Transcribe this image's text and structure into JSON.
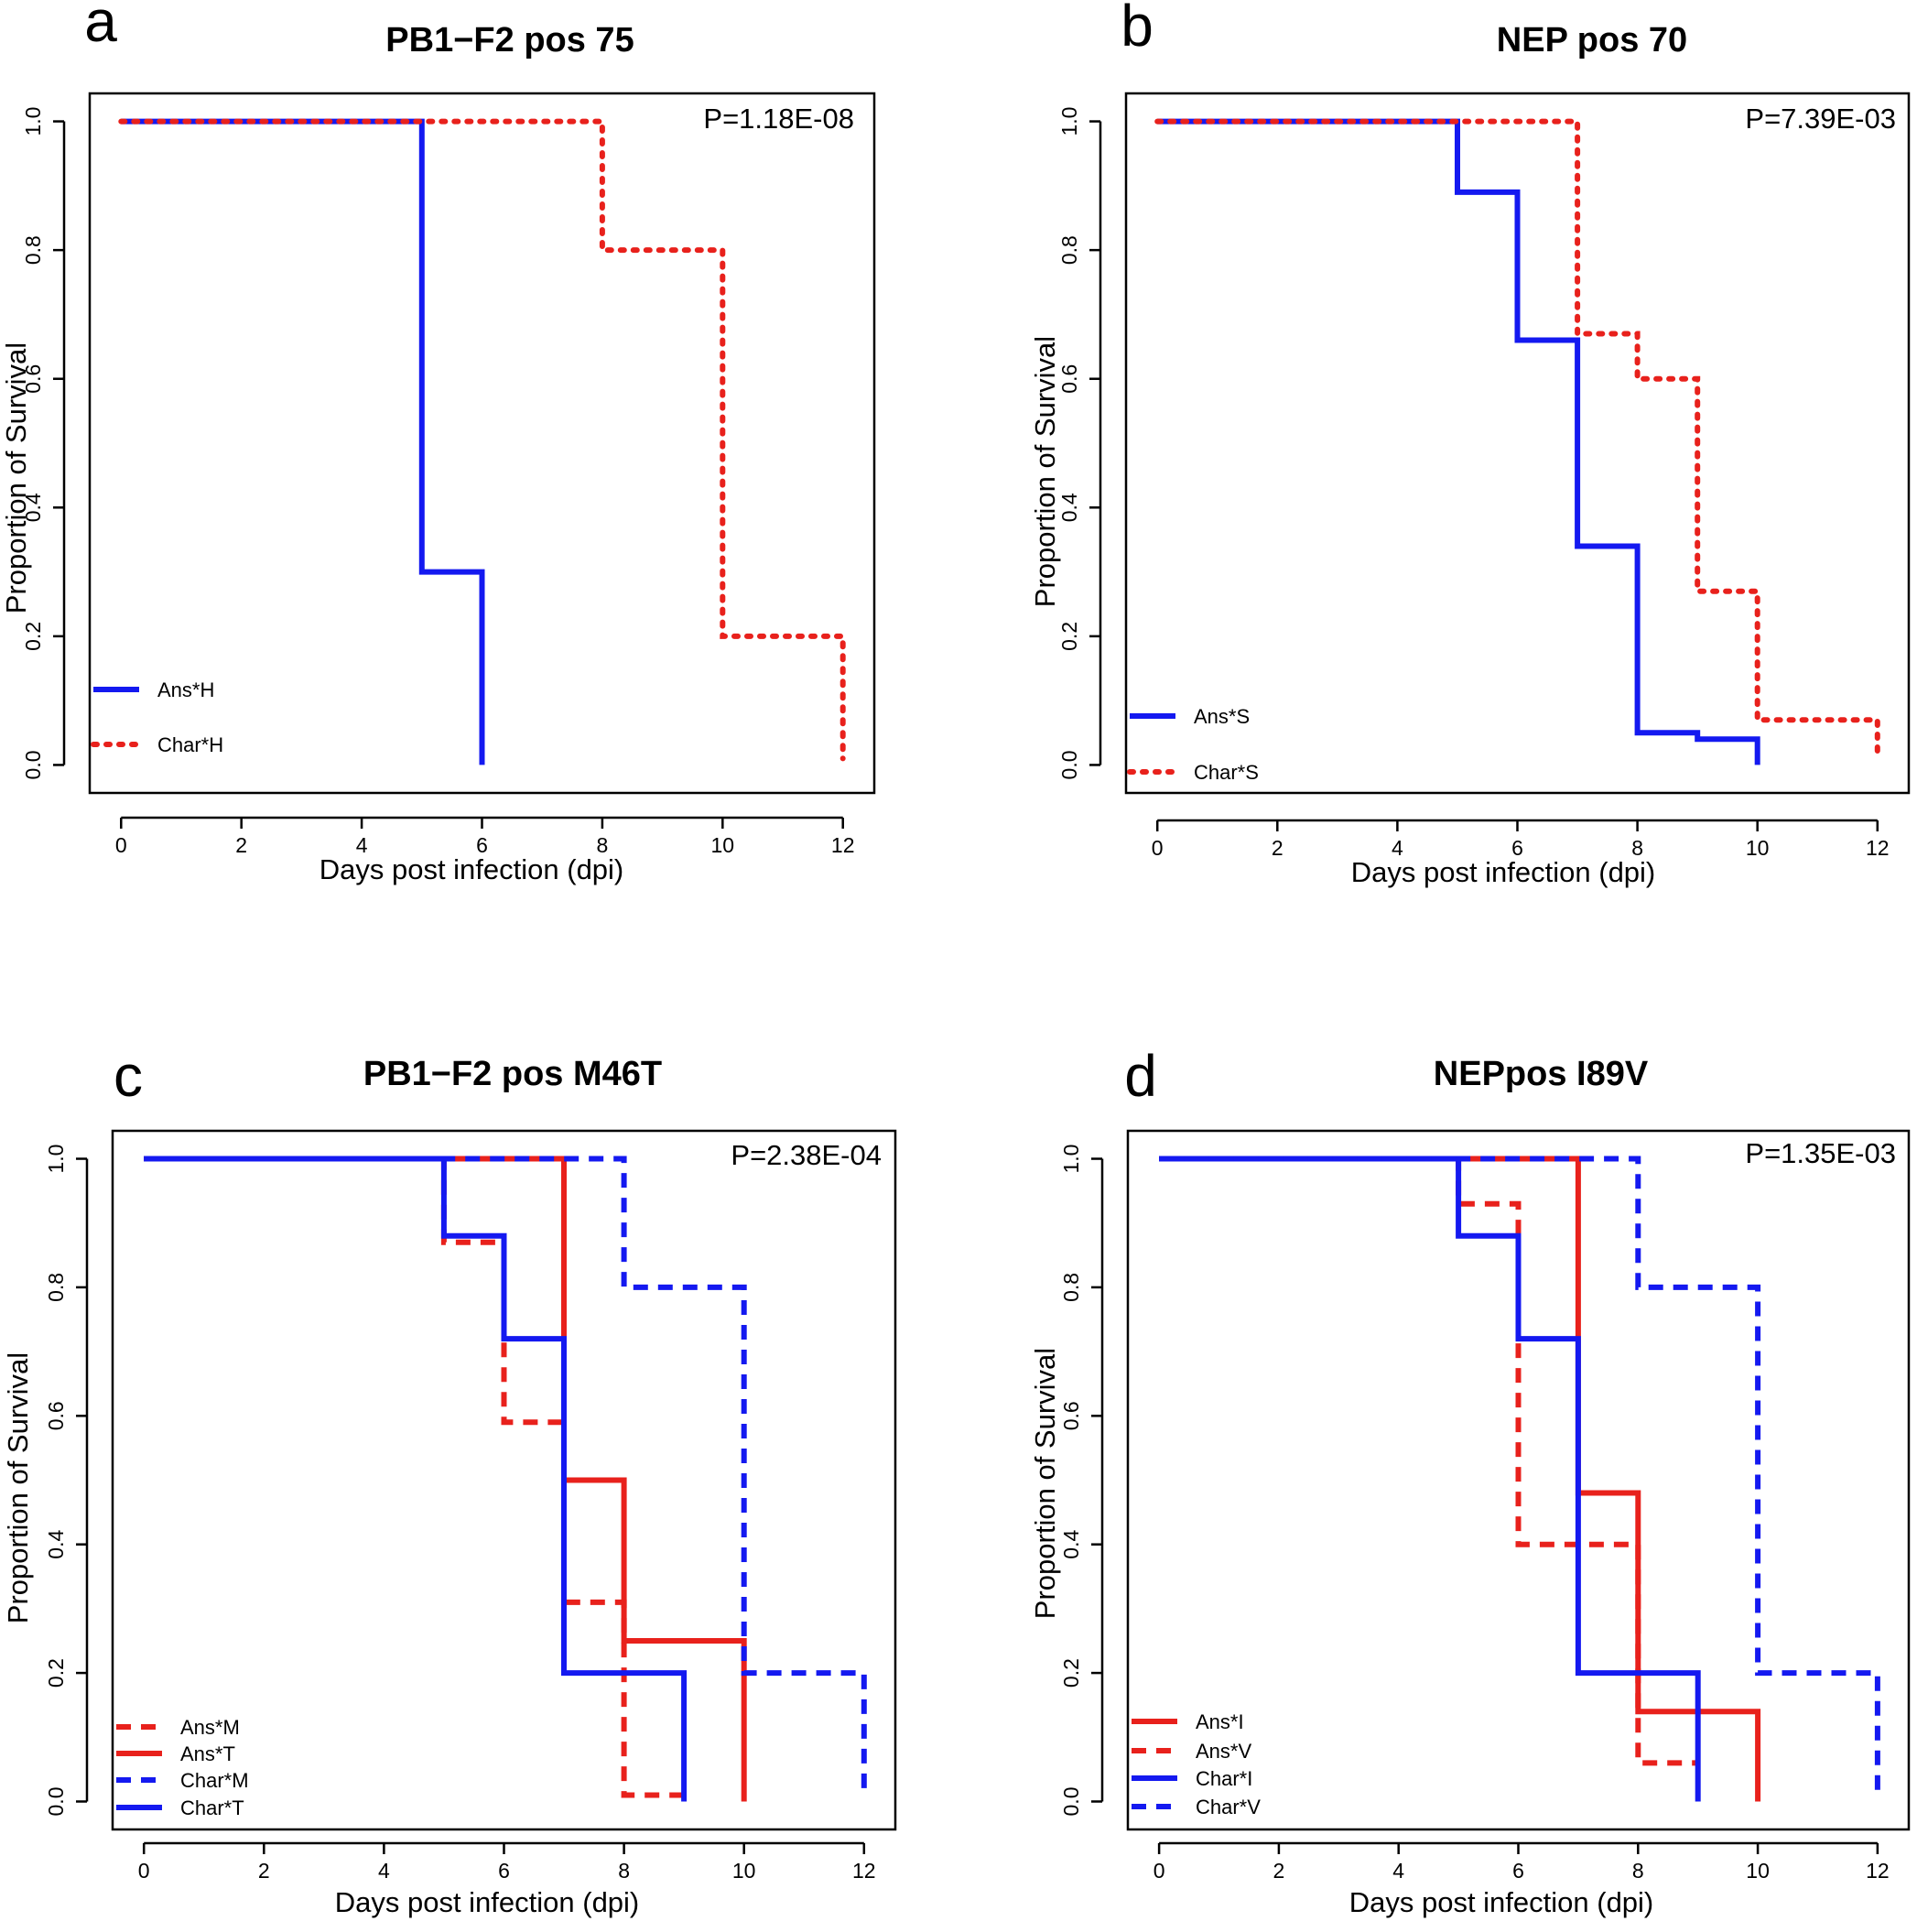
{
  "figure": {
    "colors": {
      "red": "#e8211c",
      "blue": "#1419f0",
      "axis": "#000000"
    }
  },
  "chart_data": [
    {
      "type": "line",
      "subtype": "kaplan-meier step",
      "panel_letter": "a",
      "title": "PB1−F2 pos 75",
      "xlabel": "Days post infection (dpi)",
      "ylabel": "Proportion of Survival",
      "xlim": [
        0,
        12
      ],
      "ylim": [
        0,
        1
      ],
      "xticks": [
        "0",
        "2",
        "4",
        "6",
        "8",
        "10",
        "12"
      ],
      "yticks": [
        "0.0",
        "0.2",
        "0.4",
        "0.6",
        "0.8",
        "1.0"
      ],
      "p_value": "P=1.18E-08",
      "legend_position": "bottom-left",
      "series": [
        {
          "name": "Ans*H",
          "color": "#1419f0",
          "style": "solid",
          "steps": [
            [
              0,
              1.0
            ],
            [
              5,
              0.3
            ],
            [
              6,
              0.0
            ]
          ],
          "end_day": 6,
          "end_value": 0.0
        },
        {
          "name": "Char*H",
          "color": "#e8211c",
          "style": "dotted",
          "steps": [
            [
              0,
              1.0
            ],
            [
              8,
              0.8
            ],
            [
              10,
              0.2
            ]
          ],
          "end_day": 12,
          "end_value": 0.01
        }
      ]
    },
    {
      "type": "line",
      "subtype": "kaplan-meier step",
      "panel_letter": "b",
      "title": "NEP pos 70",
      "xlabel": "Days post infection (dpi)",
      "ylabel": "Proportion of Survival",
      "xlim": [
        0,
        12
      ],
      "ylim": [
        0,
        1
      ],
      "xticks": [
        "0",
        "2",
        "4",
        "6",
        "8",
        "10",
        "12"
      ],
      "yticks": [
        "0.0",
        "0.2",
        "0.4",
        "0.6",
        "0.8",
        "1.0"
      ],
      "p_value": "P=7.39E-03",
      "legend_position": "bottom-left",
      "series": [
        {
          "name": "Ans*S",
          "color": "#1419f0",
          "style": "solid",
          "steps": [
            [
              0,
              1.0
            ],
            [
              5,
              0.89
            ],
            [
              6,
              0.66
            ],
            [
              7,
              0.34
            ],
            [
              8,
              0.05
            ],
            [
              9,
              0.04
            ]
          ],
          "end_day": 10,
          "end_value": 0.0
        },
        {
          "name": "Char*S",
          "color": "#e8211c",
          "style": "dotted",
          "steps": [
            [
              0,
              1.0
            ],
            [
              7,
              0.67
            ],
            [
              8,
              0.6
            ],
            [
              9,
              0.27
            ],
            [
              10,
              0.07
            ]
          ],
          "end_day": 12,
          "end_value": 0.01
        }
      ]
    },
    {
      "type": "line",
      "subtype": "kaplan-meier step",
      "panel_letter": "c",
      "title": "PB1−F2 pos M46T",
      "xlabel": "Days post infection (dpi)",
      "ylabel": "Proportion of Survival",
      "xlim": [
        0,
        12
      ],
      "ylim": [
        0,
        1
      ],
      "xticks": [
        "0",
        "2",
        "4",
        "6",
        "8",
        "10",
        "12"
      ],
      "yticks": [
        "0.0",
        "0.2",
        "0.4",
        "0.6",
        "0.8",
        "1.0"
      ],
      "p_value": "P=2.38E-04",
      "legend_position": "bottom-left",
      "series": [
        {
          "name": "Ans*M",
          "color": "#e8211c",
          "style": "dashed",
          "steps": [
            [
              0,
              1.0
            ],
            [
              5,
              0.87
            ],
            [
              6,
              0.59
            ],
            [
              7,
              0.31
            ],
            [
              8,
              0.01
            ]
          ],
          "end_day": 9,
          "end_value": 0.01
        },
        {
          "name": "Ans*T",
          "color": "#e8211c",
          "style": "solid",
          "steps": [
            [
              0,
              1.0
            ],
            [
              7,
              0.5
            ],
            [
              8,
              0.25
            ]
          ],
          "end_day": 10,
          "end_value": 0.0
        },
        {
          "name": "Char*M",
          "color": "#1419f0",
          "style": "dashed",
          "steps": [
            [
              0,
              1.0
            ],
            [
              8,
              0.8
            ],
            [
              10,
              0.2
            ]
          ],
          "end_day": 12,
          "end_value": 0.01
        },
        {
          "name": "Char*T",
          "color": "#1419f0",
          "style": "solid",
          "steps": [
            [
              0,
              1.0
            ],
            [
              5,
              0.88
            ],
            [
              6,
              0.72
            ],
            [
              7,
              0.2
            ]
          ],
          "end_day": 9,
          "end_value": 0.0
        }
      ]
    },
    {
      "type": "line",
      "subtype": "kaplan-meier step",
      "panel_letter": "d",
      "title": "NEPpos I89V",
      "xlabel": "Days post infection (dpi)",
      "ylabel": "Proportion of Survival",
      "xlim": [
        0,
        12
      ],
      "ylim": [
        0,
        1
      ],
      "xticks": [
        "0",
        "2",
        "4",
        "6",
        "8",
        "10",
        "12"
      ],
      "yticks": [
        "0.0",
        "0.2",
        "0.4",
        "0.6",
        "0.8",
        "1.0"
      ],
      "p_value": "P=1.35E-03",
      "legend_position": "bottom-left",
      "series": [
        {
          "name": "Ans*I",
          "color": "#e8211c",
          "style": "solid",
          "steps": [
            [
              0,
              1.0
            ],
            [
              7,
              0.48
            ],
            [
              8,
              0.14
            ]
          ],
          "end_day": 10,
          "end_value": 0.0
        },
        {
          "name": "Ans*V",
          "color": "#e8211c",
          "style": "dashed",
          "steps": [
            [
              0,
              1.0
            ],
            [
              5,
              0.93
            ],
            [
              6,
              0.4
            ],
            [
              8,
              0.06
            ]
          ],
          "end_day": 9,
          "end_value": 0.06
        },
        {
          "name": "Char*I",
          "color": "#1419f0",
          "style": "solid",
          "steps": [
            [
              0,
              1.0
            ],
            [
              5,
              0.88
            ],
            [
              6,
              0.72
            ],
            [
              7,
              0.2
            ]
          ],
          "end_day": 9,
          "end_value": 0.0
        },
        {
          "name": "Char*V",
          "color": "#1419f0",
          "style": "dashed",
          "steps": [
            [
              0,
              1.0
            ],
            [
              8,
              0.8
            ],
            [
              10,
              0.2
            ]
          ],
          "end_day": 12,
          "end_value": 0.01
        }
      ]
    }
  ]
}
